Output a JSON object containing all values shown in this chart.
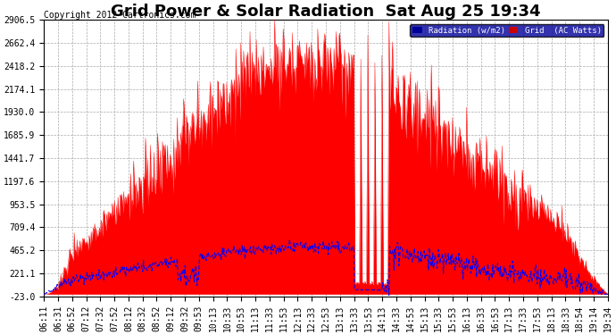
{
  "title": "Grid Power & Solar Radiation  Sat Aug 25 19:34",
  "copyright": "Copyright 2012 Cartronics.com",
  "legend_labels": [
    "Radiation (w/m2)",
    "Grid  (AC Watts)"
  ],
  "legend_colors_bg": [
    "#000099",
    "#cc0000"
  ],
  "yticks": [
    2906.5,
    2662.4,
    2418.2,
    2174.1,
    1930.0,
    1685.9,
    1441.7,
    1197.6,
    953.5,
    709.4,
    465.2,
    221.1,
    -23.0
  ],
  "ymin": -23.0,
  "ymax": 2906.5,
  "background_color": "#ffffff",
  "plot_background": "#ffffff",
  "grid_color": "#aaaaaa",
  "title_fontsize": 13,
  "copyright_fontsize": 7,
  "tick_label_fontsize": 7,
  "time_labels": [
    "06:11",
    "06:31",
    "06:52",
    "07:12",
    "07:32",
    "07:52",
    "08:12",
    "08:32",
    "08:52",
    "09:12",
    "09:32",
    "09:53",
    "10:13",
    "10:33",
    "10:53",
    "11:13",
    "11:33",
    "11:53",
    "12:13",
    "12:33",
    "12:53",
    "13:13",
    "13:33",
    "13:53",
    "14:13",
    "14:33",
    "14:53",
    "15:13",
    "15:33",
    "15:53",
    "16:13",
    "16:33",
    "16:53",
    "17:13",
    "17:33",
    "17:53",
    "18:13",
    "18:33",
    "18:54",
    "19:14",
    "19:34"
  ]
}
